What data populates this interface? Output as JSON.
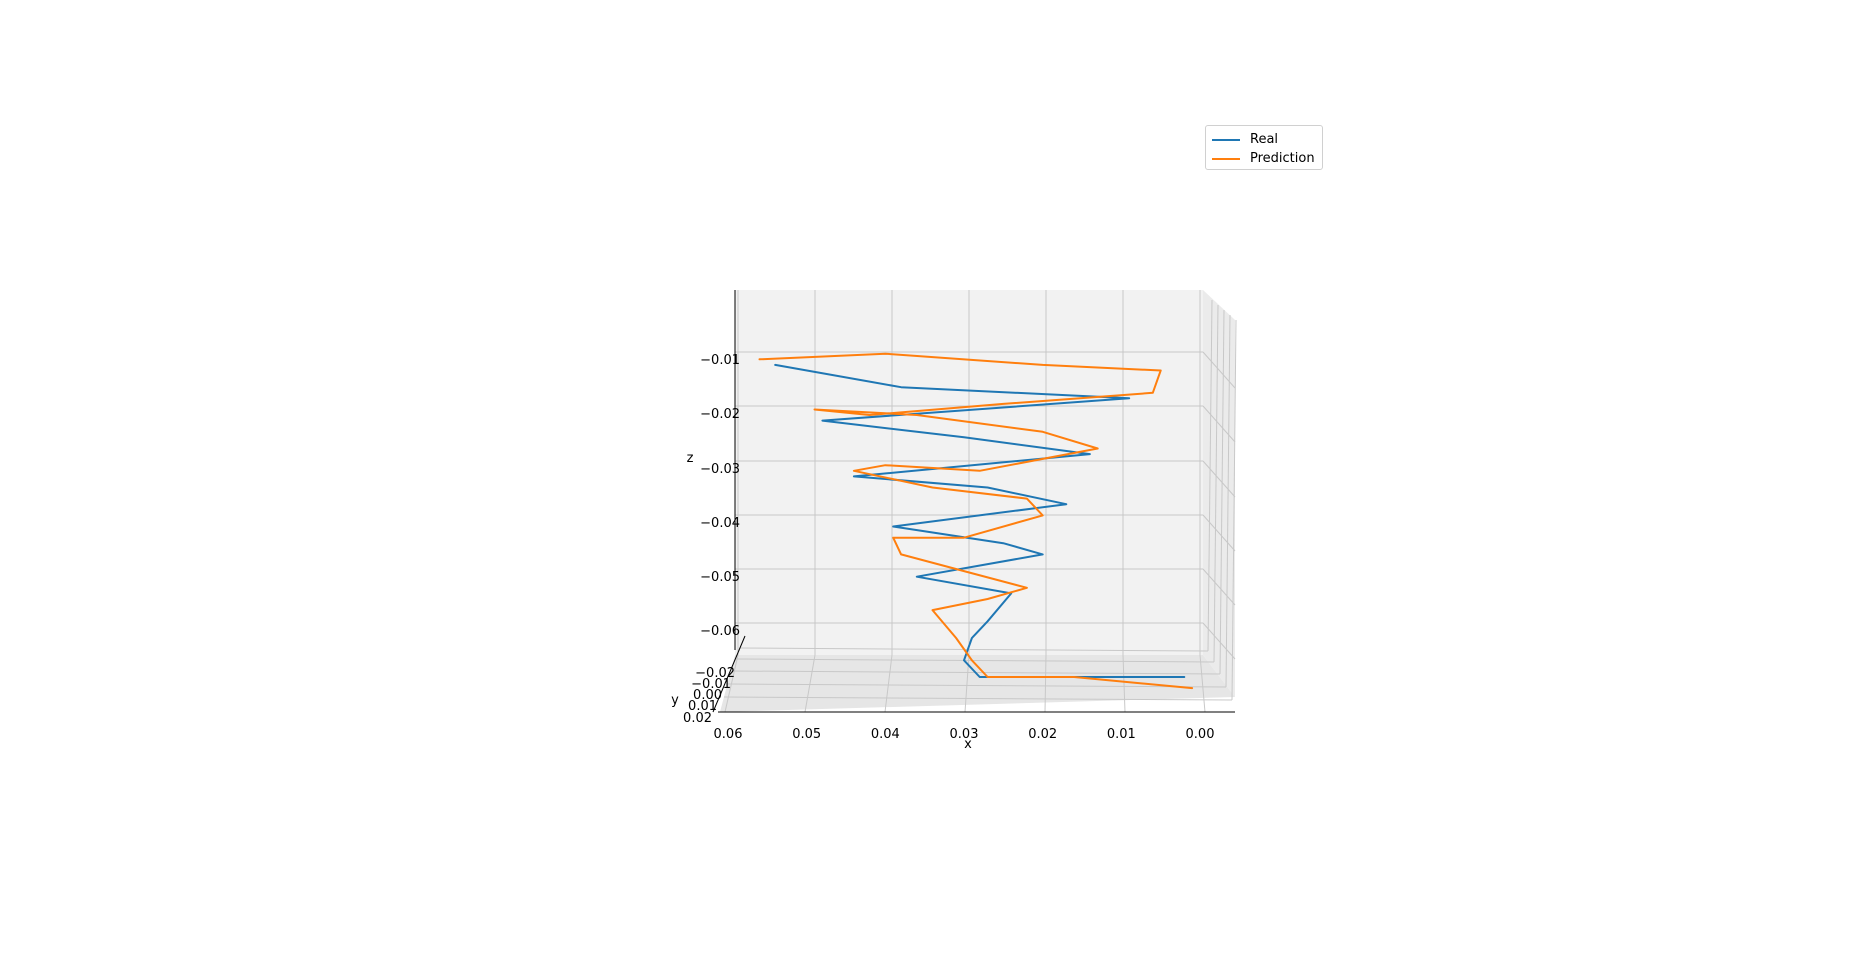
{
  "chart_data": {
    "type": "line",
    "projection": "3d",
    "xlabel": "x",
    "ylabel": "y",
    "zlabel": "z",
    "xlim": [
      0.0,
      0.06
    ],
    "ylim": [
      -0.02,
      0.02
    ],
    "zlim": [
      -0.065,
      0.0
    ],
    "x_ticks": [
      "0.06",
      "0.05",
      "0.04",
      "0.03",
      "0.02",
      "0.01",
      "0.00"
    ],
    "y_ticks": [
      "−0.02",
      "−0.01",
      "0.00",
      "0.01",
      "0.02"
    ],
    "z_ticks": [
      "−0.01",
      "−0.02",
      "−0.03",
      "−0.04",
      "−0.05",
      "−0.06"
    ],
    "grid": true,
    "legend": {
      "position": "top-right",
      "entries": [
        "Real",
        "Prediction"
      ]
    },
    "series": [
      {
        "name": "Real",
        "color": "#1f77b4",
        "note": "helix descending in z; x-extent per turn grows with height",
        "x": [
          0.002,
          0.028,
          0.03,
          0.029,
          0.027,
          0.024,
          0.036,
          0.02,
          0.025,
          0.039,
          0.017,
          0.027,
          0.044,
          0.014,
          0.03,
          0.048,
          0.009,
          0.038,
          0.054
        ],
        "z": [
          -0.068,
          -0.068,
          -0.065,
          -0.061,
          -0.058,
          -0.053,
          -0.05,
          -0.046,
          -0.044,
          -0.041,
          -0.037,
          -0.034,
          -0.032,
          -0.028,
          -0.025,
          -0.022,
          -0.018,
          -0.016,
          -0.012
        ]
      },
      {
        "name": "Prediction",
        "color": "#ff7f0e",
        "note": "noisy trajectory following the helix",
        "x": [
          0.001,
          0.016,
          0.027,
          0.029,
          0.031,
          0.034,
          0.027,
          0.022,
          0.03,
          0.038,
          0.039,
          0.03,
          0.02,
          0.022,
          0.034,
          0.044,
          0.04,
          0.028,
          0.013,
          0.02,
          0.036,
          0.049,
          0.042,
          0.025,
          0.006,
          0.005,
          0.02,
          0.04,
          0.056
        ],
        "z": [
          -0.07,
          -0.068,
          -0.068,
          -0.065,
          -0.061,
          -0.056,
          -0.054,
          -0.052,
          -0.049,
          -0.046,
          -0.043,
          -0.043,
          -0.039,
          -0.036,
          -0.034,
          -0.031,
          -0.03,
          -0.031,
          -0.027,
          -0.024,
          -0.021,
          -0.02,
          -0.021,
          -0.019,
          -0.017,
          -0.013,
          -0.012,
          -0.01,
          -0.011
        ]
      }
    ]
  }
}
